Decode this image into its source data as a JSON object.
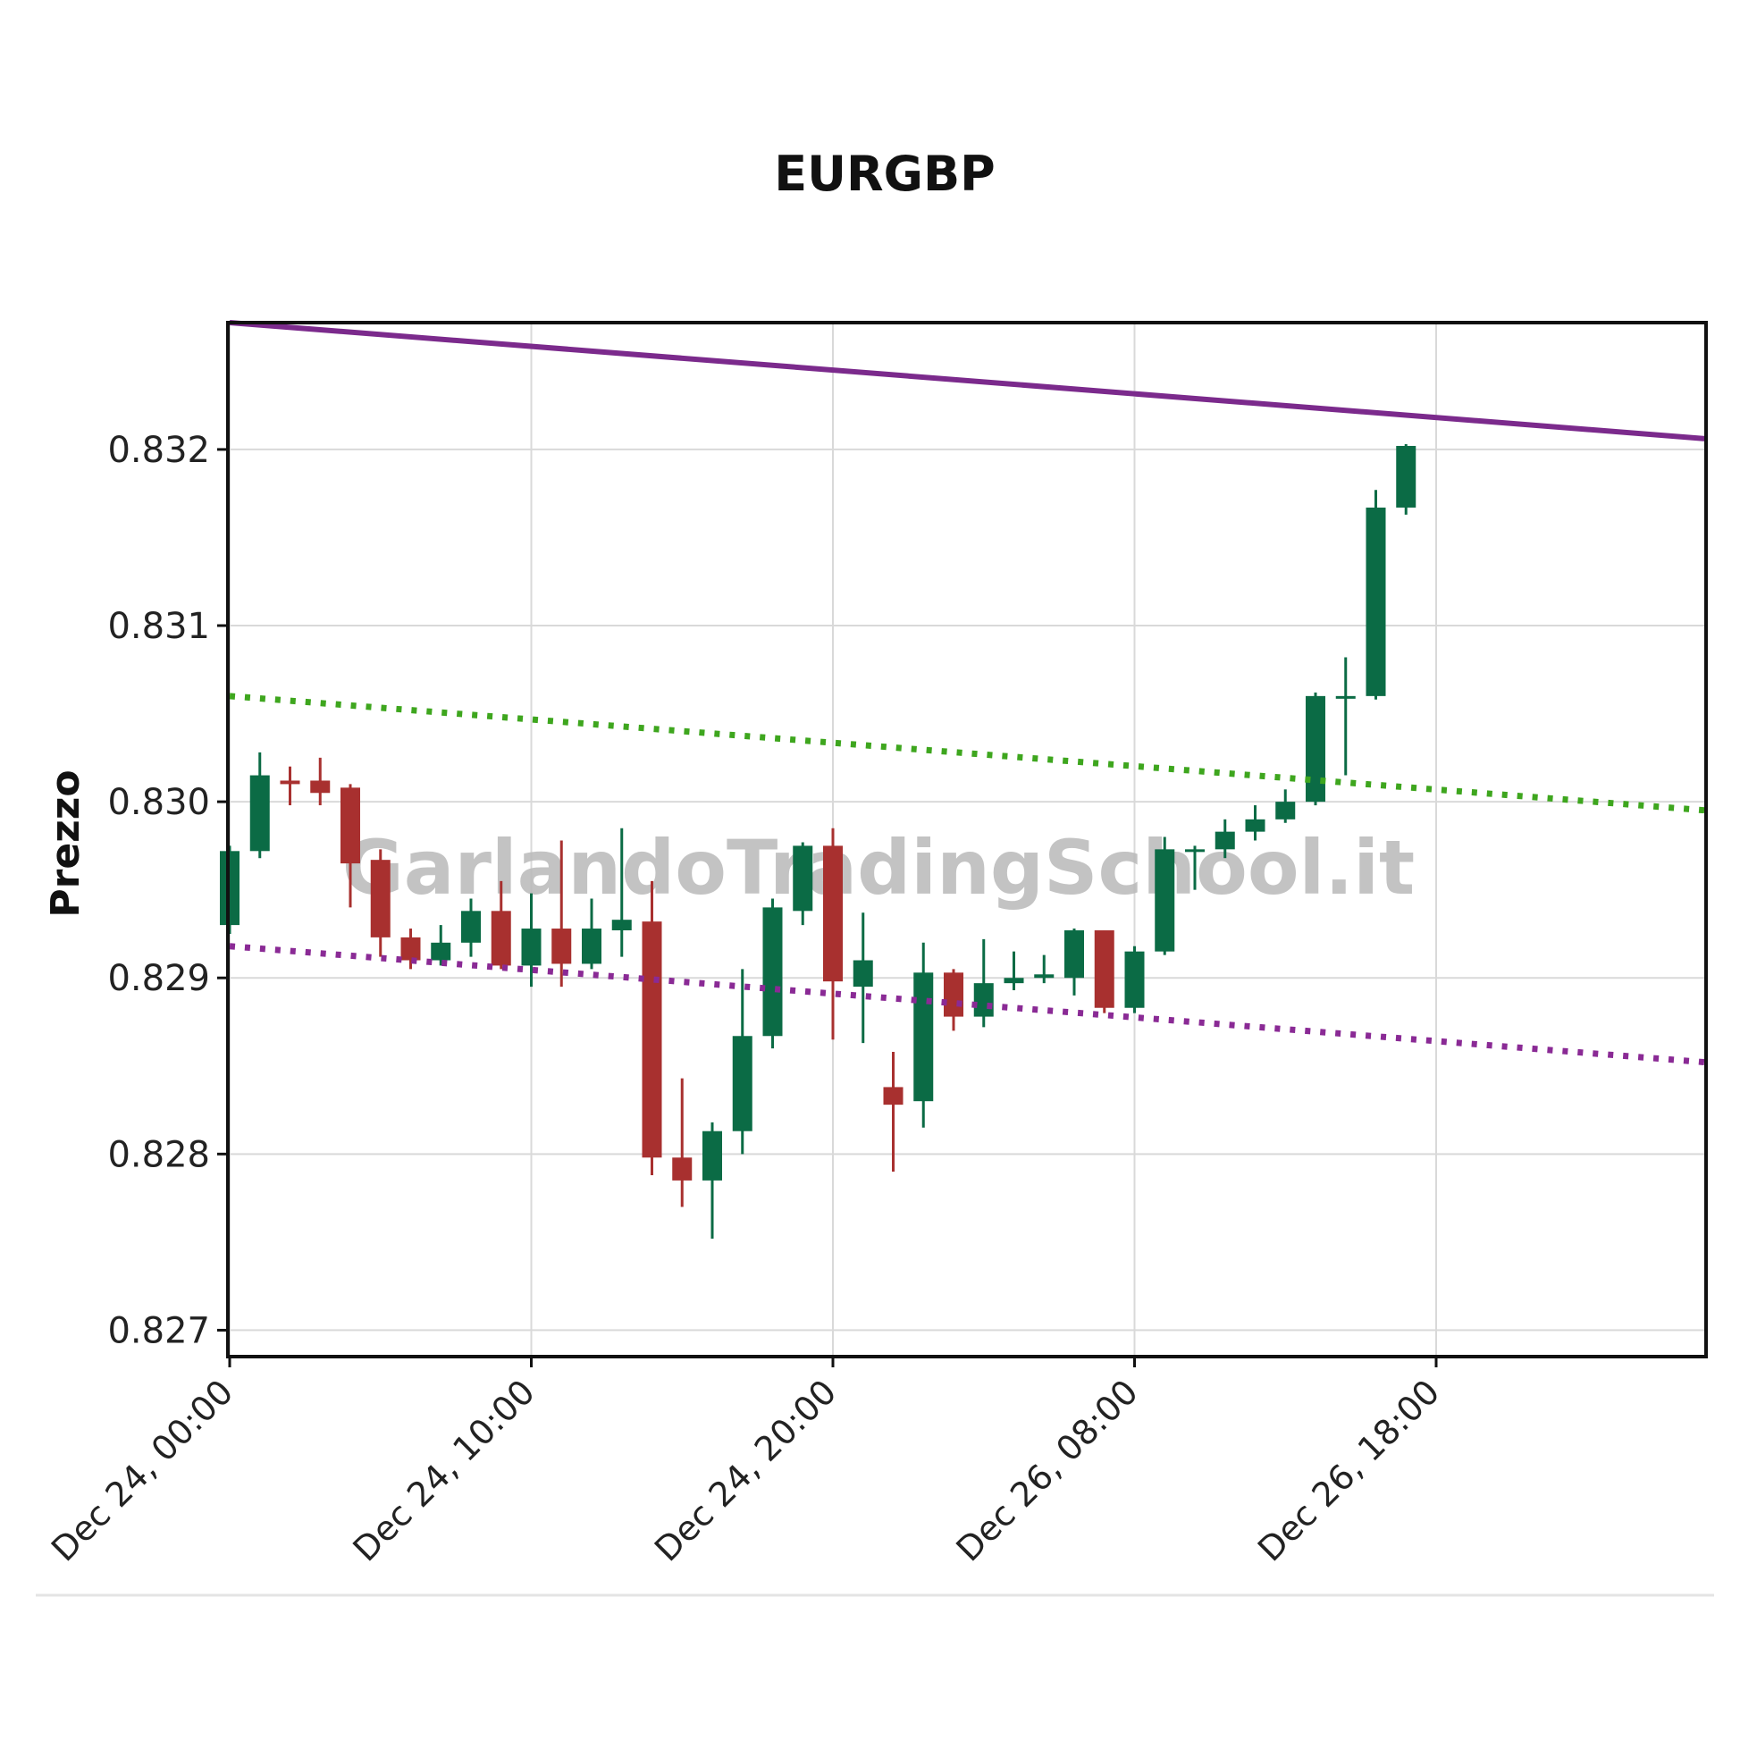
{
  "chart_data": {
    "type": "candlestick",
    "title": "EURGBP",
    "ylabel": "Prezzo",
    "xlabel": "",
    "watermark": "GarlandoTradingSchool.it",
    "ylim": [
      0.82685,
      0.83272
    ],
    "yticks": [
      0.827,
      0.828,
      0.829,
      0.83,
      0.831,
      0.832
    ],
    "ytick_labels": [
      "0.827",
      "0.828",
      "0.829",
      "0.830",
      "0.831",
      "0.832"
    ],
    "x_index_range": [
      0,
      49
    ],
    "xticks": [
      {
        "index": 0,
        "label": "Dec 24, 00:00"
      },
      {
        "index": 10,
        "label": "Dec 24, 10:00"
      },
      {
        "index": 20,
        "label": "Dec 24, 20:00"
      },
      {
        "index": 30,
        "label": "Dec 26, 08:00"
      },
      {
        "index": 40,
        "label": "Dec 26, 18:00"
      }
    ],
    "grid": true,
    "colors": {
      "up": "#0b6b45",
      "down": "#a8302f",
      "resistance": "#7b2a8c",
      "channel_top": "#3ea61e",
      "channel_bottom": "#8a2a95",
      "grid": "#d9d9d9"
    },
    "candles": [
      {
        "open": 0.8293,
        "high": 0.82975,
        "low": 0.82925,
        "close": 0.82972
      },
      {
        "open": 0.82972,
        "high": 0.83028,
        "low": 0.82968,
        "close": 0.83015
      },
      {
        "open": 0.83012,
        "high": 0.8302,
        "low": 0.82998,
        "close": 0.8301
      },
      {
        "open": 0.83012,
        "high": 0.83025,
        "low": 0.82998,
        "close": 0.83005
      },
      {
        "open": 0.83008,
        "high": 0.8301,
        "low": 0.8294,
        "close": 0.82965
      },
      {
        "open": 0.82967,
        "high": 0.82973,
        "low": 0.82912,
        "close": 0.82923
      },
      {
        "open": 0.82923,
        "high": 0.82928,
        "low": 0.82905,
        "close": 0.8291
      },
      {
        "open": 0.8291,
        "high": 0.8293,
        "low": 0.82907,
        "close": 0.8292
      },
      {
        "open": 0.8292,
        "high": 0.82945,
        "low": 0.82912,
        "close": 0.82938
      },
      {
        "open": 0.82938,
        "high": 0.82955,
        "low": 0.82905,
        "close": 0.82907
      },
      {
        "open": 0.82907,
        "high": 0.82948,
        "low": 0.82895,
        "close": 0.82928
      },
      {
        "open": 0.82928,
        "high": 0.82978,
        "low": 0.82895,
        "close": 0.82908
      },
      {
        "open": 0.82908,
        "high": 0.82945,
        "low": 0.82905,
        "close": 0.82928
      },
      {
        "open": 0.82927,
        "high": 0.82985,
        "low": 0.82912,
        "close": 0.82933
      },
      {
        "open": 0.82932,
        "high": 0.82955,
        "low": 0.82788,
        "close": 0.82798
      },
      {
        "open": 0.82798,
        "high": 0.82843,
        "low": 0.8277,
        "close": 0.82785
      },
      {
        "open": 0.82785,
        "high": 0.82818,
        "low": 0.82752,
        "close": 0.82813
      },
      {
        "open": 0.82813,
        "high": 0.82905,
        "low": 0.828,
        "close": 0.82867
      },
      {
        "open": 0.82867,
        "high": 0.82945,
        "low": 0.8286,
        "close": 0.8294
      },
      {
        "open": 0.82938,
        "high": 0.82977,
        "low": 0.8293,
        "close": 0.82975
      },
      {
        "open": 0.82975,
        "high": 0.82985,
        "low": 0.82865,
        "close": 0.82898
      },
      {
        "open": 0.82895,
        "high": 0.82937,
        "low": 0.82863,
        "close": 0.8291
      },
      {
        "open": 0.82838,
        "high": 0.82858,
        "low": 0.8279,
        "close": 0.82828
      },
      {
        "open": 0.8283,
        "high": 0.8292,
        "low": 0.82815,
        "close": 0.82903
      },
      {
        "open": 0.82903,
        "high": 0.82905,
        "low": 0.8287,
        "close": 0.82878
      },
      {
        "open": 0.82878,
        "high": 0.82922,
        "low": 0.82872,
        "close": 0.82897
      },
      {
        "open": 0.82897,
        "high": 0.82915,
        "low": 0.82893,
        "close": 0.829
      },
      {
        "open": 0.829,
        "high": 0.82913,
        "low": 0.82897,
        "close": 0.82902
      },
      {
        "open": 0.829,
        "high": 0.82928,
        "low": 0.8289,
        "close": 0.82927
      },
      {
        "open": 0.82927,
        "high": 0.82927,
        "low": 0.8288,
        "close": 0.82883
      },
      {
        "open": 0.82883,
        "high": 0.82918,
        "low": 0.8288,
        "close": 0.82915
      },
      {
        "open": 0.82915,
        "high": 0.8298,
        "low": 0.82913,
        "close": 0.82973
      },
      {
        "open": 0.82973,
        "high": 0.82975,
        "low": 0.8295,
        "close": 0.82973
      },
      {
        "open": 0.82973,
        "high": 0.8299,
        "low": 0.82968,
        "close": 0.82983
      },
      {
        "open": 0.82983,
        "high": 0.82998,
        "low": 0.82978,
        "close": 0.8299
      },
      {
        "open": 0.8299,
        "high": 0.83007,
        "low": 0.82988,
        "close": 0.83
      },
      {
        "open": 0.83,
        "high": 0.83062,
        "low": 0.82998,
        "close": 0.8306
      },
      {
        "open": 0.8306,
        "high": 0.83082,
        "low": 0.83015,
        "close": 0.8306
      },
      {
        "open": 0.8306,
        "high": 0.83177,
        "low": 0.83058,
        "close": 0.83167
      },
      {
        "open": 0.83167,
        "high": 0.83203,
        "low": 0.83163,
        "close": 0.83202
      }
    ],
    "lines": [
      {
        "style": "solid",
        "color_key": "resistance",
        "from": {
          "index": 0,
          "value": 0.83272
        },
        "to": {
          "index": 49,
          "value": 0.83206
        }
      },
      {
        "style": "dotted",
        "color_key": "channel_top",
        "from": {
          "index": 0,
          "value": 0.8306
        },
        "to": {
          "index": 49,
          "value": 0.82995
        }
      },
      {
        "style": "dotted",
        "color_key": "channel_bottom",
        "from": {
          "index": 0,
          "value": 0.82918
        },
        "to": {
          "index": 49,
          "value": 0.82852
        }
      }
    ]
  }
}
